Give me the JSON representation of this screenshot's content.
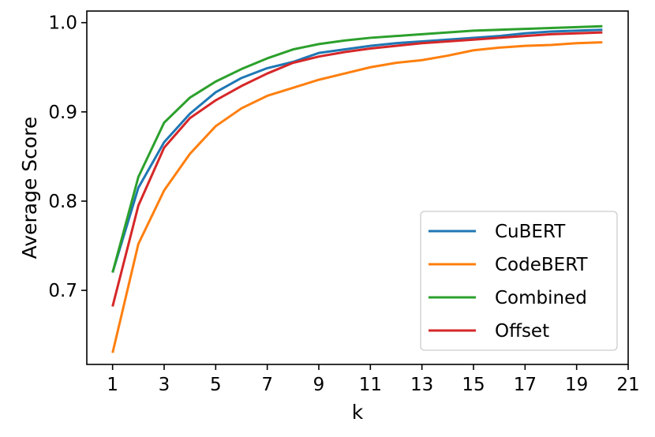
{
  "chart_data": {
    "type": "line",
    "title": "",
    "xlabel": "k",
    "ylabel": "Average Score",
    "xlim": [
      0.0,
      21.0
    ],
    "ylim": [
      0.617,
      1.013
    ],
    "xticks": [
      1,
      3,
      5,
      7,
      9,
      11,
      13,
      15,
      17,
      19,
      21
    ],
    "xtick_labels": [
      "1",
      "3",
      "5",
      "7",
      "9",
      "11",
      "13",
      "15",
      "17",
      "19",
      "21"
    ],
    "yticks": [
      0.7,
      0.8,
      0.9,
      1.0
    ],
    "ytick_labels": [
      "0.7",
      "0.8",
      "0.9",
      "1.0"
    ],
    "grid": false,
    "legend_position": "lower-right",
    "x": [
      1,
      2,
      3,
      4,
      5,
      6,
      7,
      8,
      9,
      10,
      11,
      12,
      13,
      14,
      15,
      16,
      17,
      18,
      19,
      20
    ],
    "series": [
      {
        "name": "CuBERT",
        "color": "#1f77b4",
        "values": [
          0.72,
          0.815,
          0.866,
          0.898,
          0.922,
          0.938,
          0.949,
          0.956,
          0.966,
          0.97,
          0.974,
          0.977,
          0.979,
          0.981,
          0.983,
          0.985,
          0.988,
          0.99,
          0.991,
          0.992
        ]
      },
      {
        "name": "CodeBERT",
        "color": "#ff7f0e",
        "values": [
          0.63,
          0.752,
          0.812,
          0.853,
          0.884,
          0.904,
          0.918,
          0.927,
          0.936,
          0.943,
          0.95,
          0.955,
          0.958,
          0.963,
          0.969,
          0.972,
          0.974,
          0.975,
          0.977,
          0.978
        ]
      },
      {
        "name": "Combined",
        "color": "#2ca02c",
        "values": [
          0.72,
          0.827,
          0.888,
          0.916,
          0.934,
          0.948,
          0.96,
          0.97,
          0.976,
          0.98,
          0.983,
          0.985,
          0.987,
          0.989,
          0.991,
          0.992,
          0.993,
          0.994,
          0.995,
          0.996
        ]
      },
      {
        "name": "Offset",
        "color": "#d62728",
        "values": [
          0.682,
          0.795,
          0.86,
          0.893,
          0.913,
          0.929,
          0.943,
          0.955,
          0.962,
          0.967,
          0.971,
          0.974,
          0.977,
          0.979,
          0.981,
          0.983,
          0.985,
          0.987,
          0.988,
          0.989
        ]
      }
    ]
  }
}
